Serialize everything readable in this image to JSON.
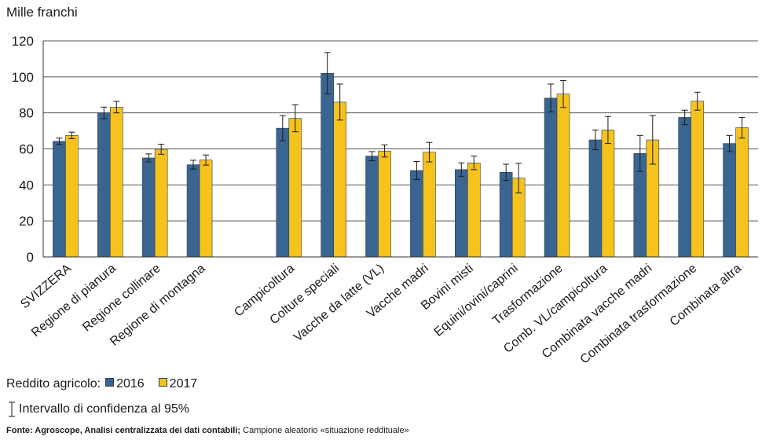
{
  "y_unit_label": "Mille franchi",
  "legend": {
    "title": "Reddito agricolo:",
    "items": [
      {
        "label": "2016",
        "color": "#3b6591"
      },
      {
        "label": "2017",
        "color": "#f6c21c"
      }
    ]
  },
  "ci_note": "Intervallo di confidenza al 95%",
  "source": {
    "bold": "Fonte: Agroscope, Analisi centralizzata dei dati contabili;",
    "normal": " Campione aleatorio «situazione reddituale»"
  },
  "chart_data": {
    "type": "bar",
    "ylim": [
      0,
      120
    ],
    "yticks": [
      0,
      20,
      40,
      60,
      80,
      100,
      120
    ],
    "grid": true,
    "categories": [
      "SVIZZERA",
      "Regione di pianura",
      "Regione collinare",
      "Regione di montagna",
      "",
      "Campicoltura",
      "Colture speciali",
      "Vacche da latte (VL)",
      "Vacche madri",
      "Bovini misti",
      "Equini/ovini/caprini",
      "Trasformazione",
      "Comb. VL/campicoltura",
      "Combinata vacche madri",
      "Combinata trasformazione",
      "Combinata altra"
    ],
    "series": [
      {
        "name": "2016",
        "color": "#3b6591",
        "values": [
          64.2,
          80,
          55,
          51.2,
          null,
          71.5,
          102,
          56,
          48,
          48.5,
          47,
          88.2,
          65,
          57.5,
          77.5,
          63
        ],
        "ci_low": [
          62.5,
          76.8,
          52.8,
          48.8,
          null,
          64.5,
          90.5,
          53.5,
          43,
          44.8,
          42.5,
          80.5,
          59.5,
          47.5,
          73.5,
          58.5
        ],
        "ci_high": [
          66,
          83.2,
          57.2,
          53.7,
          null,
          78.5,
          113.5,
          58.5,
          53,
          52.2,
          51.5,
          96,
          70.5,
          67.5,
          81.5,
          67.5
        ]
      },
      {
        "name": "2017",
        "color": "#f6c21c",
        "values": [
          67.5,
          83.2,
          59.8,
          53.8,
          null,
          77,
          86,
          58.8,
          58.2,
          52.2,
          43.8,
          90.5,
          70.5,
          65,
          86.5,
          71.8
        ],
        "ci_low": [
          65.7,
          80,
          57,
          51,
          null,
          69.5,
          76,
          55.5,
          52.8,
          48.5,
          35.5,
          83,
          63,
          51.5,
          81.5,
          66
        ],
        "ci_high": [
          69.3,
          86.4,
          62.6,
          56.6,
          null,
          84.5,
          96,
          62.2,
          63.6,
          56,
          52,
          98,
          78,
          78.5,
          91.5,
          77.5
        ]
      }
    ]
  }
}
